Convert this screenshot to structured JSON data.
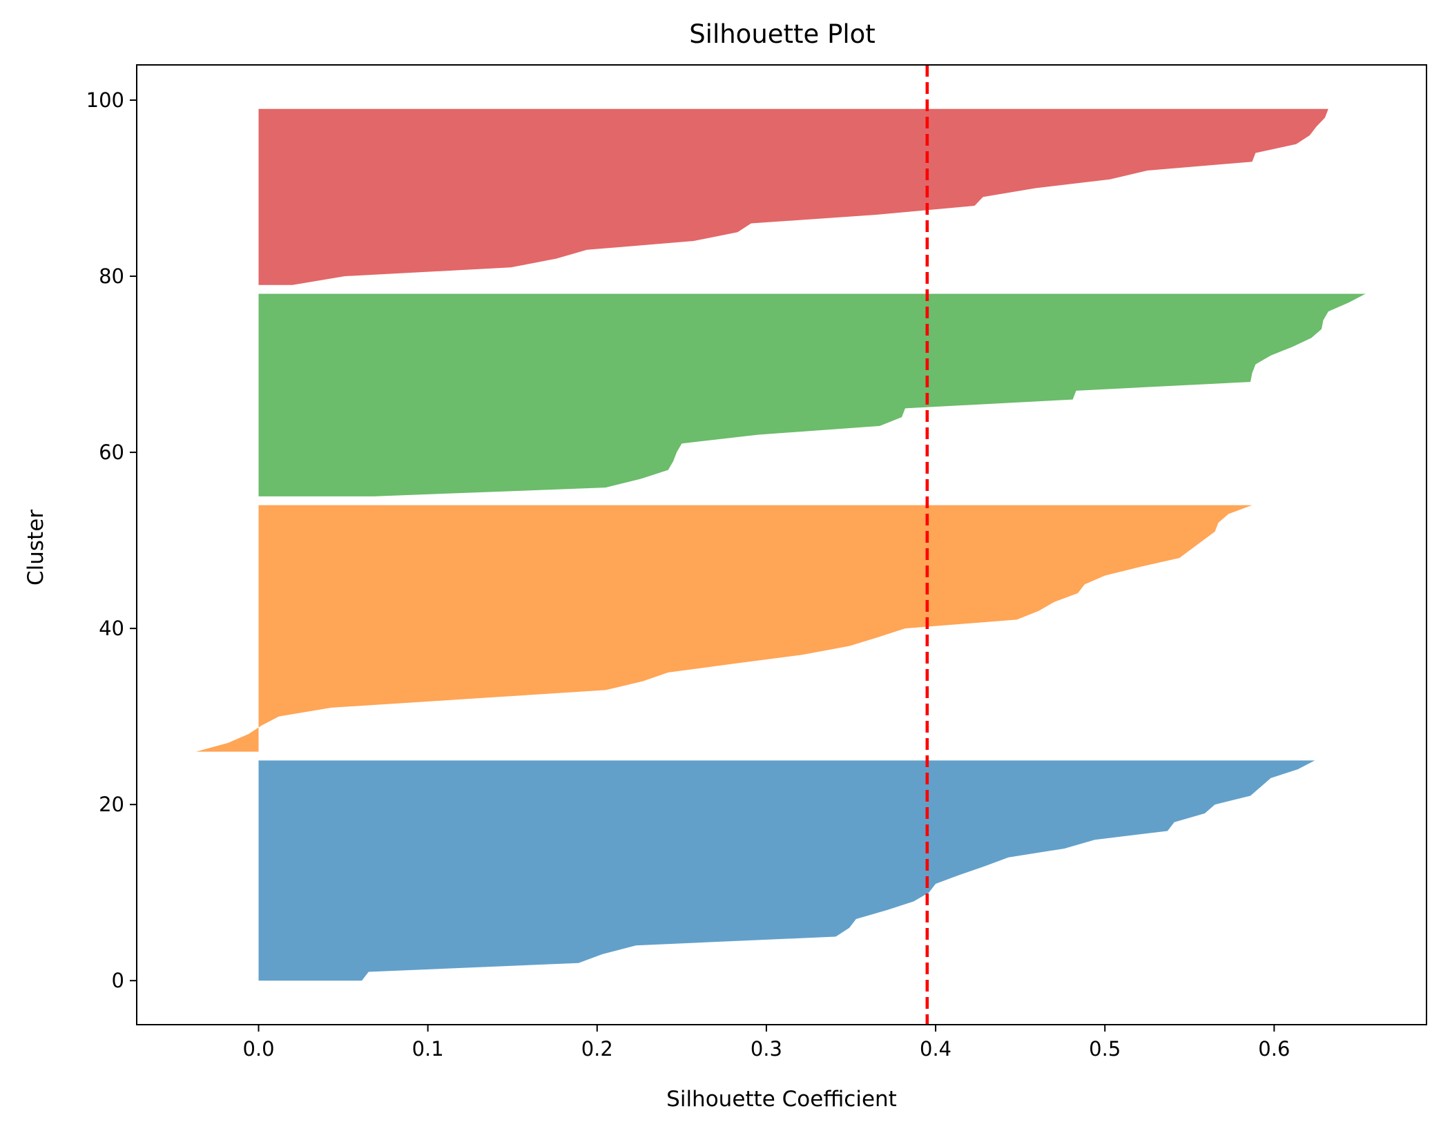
{
  "chart_data": {
    "type": "area",
    "title": "Silhouette Plot",
    "xlabel": "Silhouette Coefficient",
    "ylabel": "Cluster",
    "xlim": [
      -0.072,
      0.69
    ],
    "ylim": [
      -5,
      104
    ],
    "xticks": [
      0.0,
      0.1,
      0.2,
      0.3,
      0.4,
      0.5,
      0.6
    ],
    "xtick_labels": [
      "0.0",
      "0.1",
      "0.2",
      "0.3",
      "0.4",
      "0.5",
      "0.6"
    ],
    "yticks": [
      0,
      20,
      40,
      60,
      80,
      100
    ],
    "ytick_labels": [
      "0",
      "20",
      "40",
      "60",
      "80",
      "100"
    ],
    "grid": false,
    "average_silhouette": 0.395,
    "average_line_color": "#ff0000",
    "series": [
      {
        "color": "#1f77b4",
        "y": [
          0,
          1,
          2,
          3,
          4,
          5,
          6,
          7,
          8,
          9,
          10,
          11,
          12,
          13,
          14,
          15,
          16,
          17,
          18,
          19,
          20,
          21,
          22,
          23,
          24,
          25
        ],
        "values": [
          0.061,
          0.065,
          0.189,
          0.203,
          0.223,
          0.341,
          0.349,
          0.353,
          0.371,
          0.387,
          0.396,
          0.4,
          0.414,
          0.429,
          0.443,
          0.476,
          0.494,
          0.537,
          0.541,
          0.559,
          0.565,
          0.586,
          0.592,
          0.598,
          0.614,
          0.624
        ]
      },
      {
        "color": "#ff7f0e",
        "y": [
          26,
          27,
          28,
          29,
          30,
          31,
          32,
          33,
          34,
          35,
          36,
          37,
          38,
          39,
          40,
          41,
          42,
          43,
          44,
          45,
          46,
          47,
          48,
          49,
          50,
          51,
          52,
          53,
          54
        ],
        "values": [
          -0.037,
          -0.018,
          -0.006,
          0.002,
          0.012,
          0.043,
          0.124,
          0.205,
          0.227,
          0.242,
          0.281,
          0.321,
          0.349,
          0.366,
          0.382,
          0.448,
          0.461,
          0.47,
          0.484,
          0.488,
          0.5,
          0.521,
          0.544,
          0.551,
          0.558,
          0.565,
          0.567,
          0.573,
          0.587
        ]
      },
      {
        "color": "#2ca02c",
        "y": [
          55,
          56,
          57,
          58,
          59,
          60,
          61,
          62,
          63,
          64,
          65,
          66,
          67,
          68,
          69,
          70,
          71,
          72,
          73,
          74,
          75,
          76,
          77,
          78
        ],
        "values": [
          0.068,
          0.205,
          0.226,
          0.242,
          0.245,
          0.247,
          0.25,
          0.295,
          0.367,
          0.38,
          0.382,
          0.481,
          0.483,
          0.586,
          0.587,
          0.589,
          0.598,
          0.611,
          0.622,
          0.628,
          0.629,
          0.632,
          0.644,
          0.654
        ]
      },
      {
        "color": "#d62728",
        "y": [
          79,
          80,
          81,
          82,
          83,
          84,
          85,
          86,
          87,
          88,
          89,
          90,
          91,
          92,
          93,
          94,
          95,
          96,
          97,
          98,
          99
        ],
        "values": [
          0.02,
          0.051,
          0.149,
          0.176,
          0.194,
          0.257,
          0.283,
          0.291,
          0.366,
          0.423,
          0.428,
          0.459,
          0.503,
          0.525,
          0.587,
          0.589,
          0.613,
          0.621,
          0.625,
          0.63,
          0.632
        ]
      }
    ]
  }
}
